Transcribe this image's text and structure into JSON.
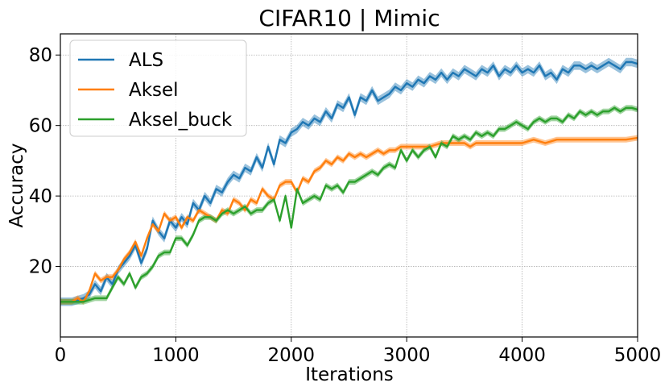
{
  "chart_data": {
    "type": "line",
    "title": "CIFAR10 | Mimic",
    "xlabel": "Iterations",
    "ylabel": "Accuracy",
    "xlim": [
      0,
      5000
    ],
    "ylim": [
      0,
      86
    ],
    "xticks": [
      0,
      1000,
      2000,
      3000,
      4000,
      5000
    ],
    "yticks": [
      20,
      40,
      60,
      80
    ],
    "grid": true,
    "legend_position": "top-left",
    "series": [
      {
        "name": "ALS",
        "color": "#1f77b4",
        "band": 1.2,
        "points": [
          [
            0,
            10
          ],
          [
            100,
            10
          ],
          [
            150,
            10.5
          ],
          [
            200,
            11
          ],
          [
            250,
            12
          ],
          [
            300,
            15
          ],
          [
            350,
            13
          ],
          [
            400,
            17
          ],
          [
            450,
            15
          ],
          [
            500,
            19
          ],
          [
            550,
            21
          ],
          [
            600,
            23
          ],
          [
            650,
            26
          ],
          [
            700,
            21
          ],
          [
            750,
            25
          ],
          [
            800,
            33
          ],
          [
            850,
            30
          ],
          [
            900,
            28
          ],
          [
            950,
            33
          ],
          [
            1000,
            31
          ],
          [
            1050,
            34
          ],
          [
            1100,
            32
          ],
          [
            1150,
            38
          ],
          [
            1200,
            36
          ],
          [
            1250,
            40
          ],
          [
            1300,
            38
          ],
          [
            1350,
            42
          ],
          [
            1400,
            41
          ],
          [
            1450,
            44
          ],
          [
            1500,
            46
          ],
          [
            1550,
            45
          ],
          [
            1600,
            48
          ],
          [
            1650,
            47
          ],
          [
            1700,
            51
          ],
          [
            1750,
            48
          ],
          [
            1800,
            54
          ],
          [
            1850,
            49
          ],
          [
            1900,
            56
          ],
          [
            1950,
            55
          ],
          [
            2000,
            58
          ],
          [
            2050,
            59
          ],
          [
            2100,
            61
          ],
          [
            2150,
            60
          ],
          [
            2200,
            62
          ],
          [
            2250,
            61
          ],
          [
            2300,
            64
          ],
          [
            2350,
            62
          ],
          [
            2400,
            66
          ],
          [
            2450,
            65
          ],
          [
            2500,
            68
          ],
          [
            2550,
            63
          ],
          [
            2600,
            68
          ],
          [
            2650,
            67
          ],
          [
            2700,
            70
          ],
          [
            2750,
            67
          ],
          [
            2800,
            68
          ],
          [
            2850,
            69
          ],
          [
            2900,
            71
          ],
          [
            2950,
            70
          ],
          [
            3000,
            72
          ],
          [
            3050,
            71
          ],
          [
            3100,
            73
          ],
          [
            3150,
            72
          ],
          [
            3200,
            74
          ],
          [
            3250,
            73
          ],
          [
            3300,
            75
          ],
          [
            3350,
            73
          ],
          [
            3400,
            75
          ],
          [
            3450,
            74
          ],
          [
            3500,
            76
          ],
          [
            3550,
            75
          ],
          [
            3600,
            74
          ],
          [
            3650,
            76
          ],
          [
            3700,
            75
          ],
          [
            3750,
            77
          ],
          [
            3800,
            74
          ],
          [
            3850,
            76
          ],
          [
            3900,
            75
          ],
          [
            3950,
            77
          ],
          [
            4000,
            75
          ],
          [
            4050,
            76
          ],
          [
            4100,
            75
          ],
          [
            4150,
            77
          ],
          [
            4200,
            74
          ],
          [
            4250,
            75
          ],
          [
            4300,
            73
          ],
          [
            4350,
            76
          ],
          [
            4400,
            75
          ],
          [
            4450,
            77
          ],
          [
            4500,
            77
          ],
          [
            4550,
            76
          ],
          [
            4600,
            77
          ],
          [
            4650,
            76
          ],
          [
            4700,
            77
          ],
          [
            4750,
            78
          ],
          [
            4800,
            77
          ],
          [
            4850,
            76
          ],
          [
            4900,
            78
          ],
          [
            4950,
            78
          ],
          [
            5000,
            77.5
          ]
        ]
      },
      {
        "name": "Aksel",
        "color": "#ff7f0e",
        "band": 0.8,
        "points": [
          [
            0,
            10
          ],
          [
            100,
            10
          ],
          [
            150,
            11
          ],
          [
            200,
            10
          ],
          [
            250,
            13
          ],
          [
            300,
            18
          ],
          [
            350,
            16
          ],
          [
            400,
            17
          ],
          [
            450,
            17
          ],
          [
            500,
            19
          ],
          [
            550,
            22
          ],
          [
            600,
            24
          ],
          [
            650,
            27
          ],
          [
            700,
            23
          ],
          [
            750,
            28
          ],
          [
            800,
            32
          ],
          [
            850,
            30
          ],
          [
            900,
            35
          ],
          [
            950,
            33
          ],
          [
            1000,
            34
          ],
          [
            1050,
            31
          ],
          [
            1100,
            34
          ],
          [
            1150,
            33
          ],
          [
            1200,
            36
          ],
          [
            1250,
            35
          ],
          [
            1300,
            34
          ],
          [
            1350,
            33
          ],
          [
            1400,
            36
          ],
          [
            1450,
            35
          ],
          [
            1500,
            39
          ],
          [
            1550,
            38
          ],
          [
            1600,
            36
          ],
          [
            1650,
            39
          ],
          [
            1700,
            38
          ],
          [
            1750,
            42
          ],
          [
            1800,
            40
          ],
          [
            1850,
            39
          ],
          [
            1900,
            43
          ],
          [
            1950,
            44
          ],
          [
            2000,
            44
          ],
          [
            2050,
            41
          ],
          [
            2100,
            45
          ],
          [
            2150,
            44
          ],
          [
            2200,
            47
          ],
          [
            2250,
            48
          ],
          [
            2300,
            50
          ],
          [
            2350,
            49
          ],
          [
            2400,
            51
          ],
          [
            2450,
            50
          ],
          [
            2500,
            52
          ],
          [
            2550,
            51
          ],
          [
            2600,
            52
          ],
          [
            2650,
            51
          ],
          [
            2700,
            52
          ],
          [
            2750,
            53
          ],
          [
            2800,
            52
          ],
          [
            2850,
            53
          ],
          [
            2900,
            53
          ],
          [
            2950,
            54
          ],
          [
            3000,
            54
          ],
          [
            3100,
            54
          ],
          [
            3200,
            54
          ],
          [
            3300,
            55
          ],
          [
            3400,
            55
          ],
          [
            3500,
            55
          ],
          [
            3550,
            54
          ],
          [
            3600,
            55
          ],
          [
            3700,
            55
          ],
          [
            3800,
            55
          ],
          [
            3900,
            55
          ],
          [
            4000,
            55
          ],
          [
            4100,
            56
          ],
          [
            4200,
            55
          ],
          [
            4300,
            56
          ],
          [
            4400,
            56
          ],
          [
            4500,
            56
          ],
          [
            4600,
            56
          ],
          [
            4700,
            56
          ],
          [
            4800,
            56
          ],
          [
            4900,
            56
          ],
          [
            5000,
            56.5
          ]
        ]
      },
      {
        "name": "Aksel_buck",
        "color": "#2ca02c",
        "band": 0.8,
        "points": [
          [
            0,
            10
          ],
          [
            100,
            10
          ],
          [
            200,
            10
          ],
          [
            250,
            10.5
          ],
          [
            300,
            11
          ],
          [
            350,
            11
          ],
          [
            400,
            11
          ],
          [
            450,
            14
          ],
          [
            500,
            17
          ],
          [
            550,
            15
          ],
          [
            600,
            18
          ],
          [
            650,
            14
          ],
          [
            700,
            17
          ],
          [
            750,
            18
          ],
          [
            800,
            20
          ],
          [
            850,
            23
          ],
          [
            900,
            24
          ],
          [
            950,
            24
          ],
          [
            1000,
            28
          ],
          [
            1050,
            28
          ],
          [
            1100,
            26
          ],
          [
            1150,
            29
          ],
          [
            1200,
            33
          ],
          [
            1250,
            34
          ],
          [
            1300,
            34
          ],
          [
            1350,
            33
          ],
          [
            1400,
            35
          ],
          [
            1450,
            36
          ],
          [
            1500,
            35
          ],
          [
            1550,
            36
          ],
          [
            1600,
            37
          ],
          [
            1650,
            35
          ],
          [
            1700,
            36
          ],
          [
            1750,
            36
          ],
          [
            1800,
            38
          ],
          [
            1850,
            39
          ],
          [
            1900,
            33
          ],
          [
            1950,
            40
          ],
          [
            2000,
            31
          ],
          [
            2050,
            42
          ],
          [
            2100,
            38
          ],
          [
            2150,
            39
          ],
          [
            2200,
            40
          ],
          [
            2250,
            39
          ],
          [
            2300,
            43
          ],
          [
            2350,
            42
          ],
          [
            2400,
            43
          ],
          [
            2450,
            41
          ],
          [
            2500,
            44
          ],
          [
            2550,
            44
          ],
          [
            2600,
            45
          ],
          [
            2650,
            46
          ],
          [
            2700,
            47
          ],
          [
            2750,
            46
          ],
          [
            2800,
            48
          ],
          [
            2850,
            49
          ],
          [
            2900,
            48
          ],
          [
            2950,
            53
          ],
          [
            3000,
            50
          ],
          [
            3050,
            53
          ],
          [
            3100,
            51
          ],
          [
            3150,
            53
          ],
          [
            3200,
            54
          ],
          [
            3250,
            51
          ],
          [
            3300,
            55
          ],
          [
            3350,
            54
          ],
          [
            3400,
            57
          ],
          [
            3450,
            56
          ],
          [
            3500,
            57
          ],
          [
            3550,
            56
          ],
          [
            3600,
            58
          ],
          [
            3650,
            57
          ],
          [
            3700,
            58
          ],
          [
            3750,
            57
          ],
          [
            3800,
            59
          ],
          [
            3850,
            59
          ],
          [
            3900,
            60
          ],
          [
            3950,
            61
          ],
          [
            4000,
            60
          ],
          [
            4050,
            59
          ],
          [
            4100,
            61
          ],
          [
            4150,
            62
          ],
          [
            4200,
            61
          ],
          [
            4250,
            62
          ],
          [
            4300,
            62
          ],
          [
            4350,
            61
          ],
          [
            4400,
            63
          ],
          [
            4450,
            62
          ],
          [
            4500,
            64
          ],
          [
            4550,
            63
          ],
          [
            4600,
            64
          ],
          [
            4650,
            63
          ],
          [
            4700,
            64
          ],
          [
            4750,
            64
          ],
          [
            4800,
            65
          ],
          [
            4850,
            64
          ],
          [
            4900,
            65
          ],
          [
            4950,
            65
          ],
          [
            5000,
            64.5
          ]
        ]
      }
    ]
  }
}
